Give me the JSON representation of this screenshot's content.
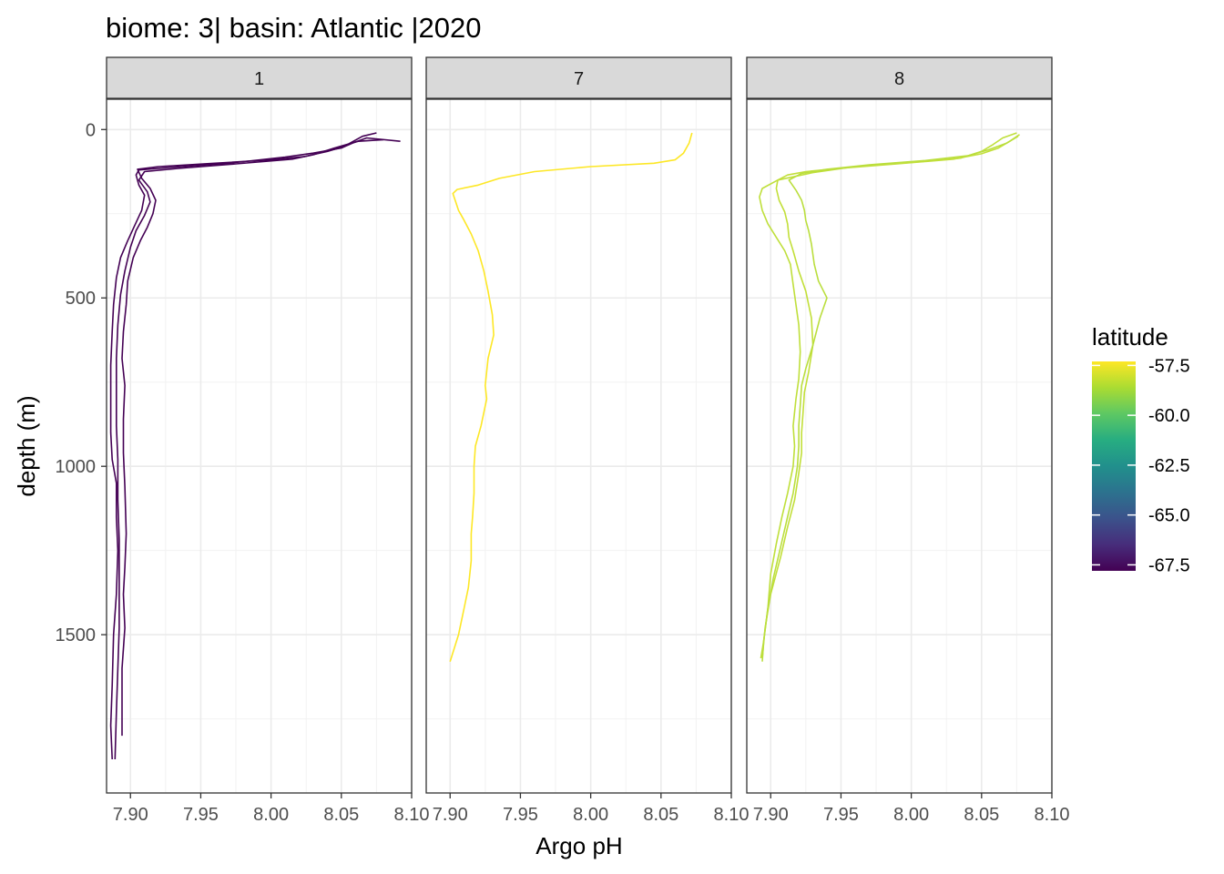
{
  "chart_data": {
    "type": "line",
    "title": "biome: 3| basin: Atlantic |2020",
    "xlabel": "Argo pH",
    "ylabel": "depth (m)",
    "xlim": [
      7.883,
      8.1
    ],
    "ylim": [
      -90,
      1970
    ],
    "y_reversed": true,
    "x_ticks": [
      "7.90",
      "7.95",
      "8.00",
      "8.05",
      "8.10"
    ],
    "y_ticks": [
      "0",
      "500",
      "1000",
      "1500"
    ],
    "grid": true,
    "legend": {
      "title": "latitude",
      "position": "right",
      "ticks": [
        "-57.5",
        "-60.0",
        "-62.5",
        "-65.0",
        "-67.5"
      ],
      "range": [
        -67.8,
        -57.3
      ],
      "colormap": "viridis"
    },
    "panels": [
      {
        "label": "1",
        "series": [
          {
            "latitude": -67.6,
            "color": "#440154",
            "points": [
              [
                8.092,
                35
              ],
              [
                8.068,
                25
              ],
              [
                8.058,
                40
              ],
              [
                8.05,
                55
              ],
              [
                8.03,
                70
              ],
              [
                8.01,
                82
              ],
              [
                7.97,
                100
              ],
              [
                7.93,
                112
              ],
              [
                7.906,
                120
              ],
              [
                7.904,
                135
              ],
              [
                7.906,
                165
              ],
              [
                7.91,
                195
              ],
              [
                7.908,
                240
              ],
              [
                7.903,
                285
              ],
              [
                7.898,
                330
              ],
              [
                7.893,
                380
              ],
              [
                7.89,
                440
              ],
              [
                7.888,
                520
              ],
              [
                7.887,
                600
              ],
              [
                7.886,
                700
              ],
              [
                7.886,
                800
              ],
              [
                7.886,
                900
              ],
              [
                7.887,
                980
              ],
              [
                7.89,
                1050
              ],
              [
                7.89,
                1150
              ],
              [
                7.891,
                1250
              ],
              [
                7.89,
                1380
              ],
              [
                7.888,
                1500
              ],
              [
                7.887,
                1650
              ],
              [
                7.886,
                1770
              ],
              [
                7.887,
                1870
              ]
            ]
          },
          {
            "latitude": -67.4,
            "color": "#440154",
            "points": [
              [
                8.08,
                30
              ],
              [
                8.062,
                35
              ],
              [
                8.045,
                55
              ],
              [
                8.03,
                75
              ],
              [
                8.015,
                88
              ],
              [
                7.975,
                102
              ],
              [
                7.935,
                115
              ],
              [
                7.91,
                125
              ],
              [
                7.906,
                150
              ],
              [
                7.912,
                185
              ],
              [
                7.914,
                215
              ],
              [
                7.91,
                255
              ],
              [
                7.904,
                300
              ],
              [
                7.9,
                350
              ],
              [
                7.896,
                420
              ],
              [
                7.893,
                490
              ],
              [
                7.891,
                580
              ],
              [
                7.89,
                680
              ],
              [
                7.89,
                780
              ],
              [
                7.89,
                880
              ],
              [
                7.891,
                980
              ],
              [
                7.891,
                1100
              ],
              [
                7.892,
                1220
              ],
              [
                7.892,
                1350
              ],
              [
                7.892,
                1480
              ],
              [
                7.891,
                1600
              ],
              [
                7.89,
                1730
              ],
              [
                7.889,
                1870
              ]
            ]
          },
          {
            "latitude": -67.2,
            "color": "#440154",
            "points": [
              [
                8.075,
                10
              ],
              [
                8.065,
                20
              ],
              [
                8.052,
                50
              ],
              [
                8.04,
                65
              ],
              [
                8.024,
                80
              ],
              [
                8.0,
                90
              ],
              [
                7.96,
                100
              ],
              [
                7.92,
                110
              ],
              [
                7.905,
                118
              ],
              [
                7.908,
                145
              ],
              [
                7.914,
                175
              ],
              [
                7.918,
                210
              ],
              [
                7.916,
                250
              ],
              [
                7.912,
                290
              ],
              [
                7.907,
                330
              ],
              [
                7.902,
                380
              ],
              [
                7.898,
                450
              ],
              [
                7.897,
                520
              ],
              [
                7.895,
                600
              ],
              [
                7.894,
                680
              ],
              [
                7.896,
                760
              ],
              [
                7.895,
                860
              ],
              [
                7.895,
                960
              ],
              [
                7.896,
                1060
              ],
              [
                7.897,
                1200
              ],
              [
                7.896,
                1300
              ],
              [
                7.895,
                1380
              ],
              [
                7.896,
                1480
              ],
              [
                7.894,
                1600
              ],
              [
                7.894,
                1700
              ],
              [
                7.894,
                1800
              ]
            ]
          }
        ]
      },
      {
        "label": "7",
        "series": [
          {
            "latitude": -57.3,
            "color": "#FDE725",
            "points": [
              [
                8.072,
                10
              ],
              [
                8.07,
                40
              ],
              [
                8.066,
                70
              ],
              [
                8.06,
                90
              ],
              [
                8.045,
                100
              ],
              [
                8.0,
                110
              ],
              [
                7.96,
                125
              ],
              [
                7.935,
                145
              ],
              [
                7.92,
                165
              ],
              [
                7.905,
                178
              ],
              [
                7.902,
                190
              ],
              [
                7.904,
                215
              ],
              [
                7.906,
                240
              ],
              [
                7.91,
                270
              ],
              [
                7.915,
                310
              ],
              [
                7.92,
                360
              ],
              [
                7.924,
                420
              ],
              [
                7.927,
                480
              ],
              [
                7.93,
                550
              ],
              [
                7.931,
                610
              ],
              [
                7.927,
                680
              ],
              [
                7.925,
                760
              ],
              [
                7.926,
                800
              ],
              [
                7.922,
                880
              ],
              [
                7.918,
                940
              ],
              [
                7.917,
                1000
              ],
              [
                7.917,
                1080
              ],
              [
                7.916,
                1150
              ],
              [
                7.915,
                1200
              ],
              [
                7.915,
                1280
              ],
              [
                7.913,
                1360
              ],
              [
                7.91,
                1420
              ],
              [
                7.906,
                1500
              ],
              [
                7.9,
                1580
              ]
            ]
          }
        ]
      },
      {
        "label": "8",
        "series": [
          {
            "latitude": -58.2,
            "color": "#BFDF3B",
            "points": [
              [
                8.075,
                10
              ],
              [
                8.065,
                25
              ],
              [
                8.058,
                45
              ],
              [
                8.05,
                65
              ],
              [
                8.035,
                85
              ],
              [
                8.0,
                98
              ],
              [
                7.96,
                110
              ],
              [
                7.93,
                128
              ],
              [
                7.905,
                150
              ],
              [
                7.894,
                175
              ],
              [
                7.892,
                200
              ],
              [
                7.894,
                240
              ],
              [
                7.898,
                280
              ],
              [
                7.904,
                320
              ],
              [
                7.91,
                360
              ],
              [
                7.914,
                400
              ],
              [
                7.916,
                460
              ],
              [
                7.918,
                520
              ],
              [
                7.92,
                580
              ],
              [
                7.921,
                660
              ],
              [
                7.92,
                740
              ],
              [
                7.918,
                800
              ],
              [
                7.916,
                880
              ],
              [
                7.917,
                940
              ],
              [
                7.916,
                1000
              ],
              [
                7.912,
                1080
              ],
              [
                7.908,
                1150
              ],
              [
                7.904,
                1230
              ],
              [
                7.9,
                1320
              ],
              [
                7.898,
                1420
              ],
              [
                7.895,
                1520
              ],
              [
                7.893,
                1570
              ]
            ]
          },
          {
            "latitude": -58.0,
            "color": "#C2DF39",
            "points": [
              [
                8.077,
                15
              ],
              [
                8.07,
                35
              ],
              [
                8.062,
                55
              ],
              [
                8.05,
                72
              ],
              [
                8.03,
                88
              ],
              [
                7.99,
                102
              ],
              [
                7.95,
                115
              ],
              [
                7.925,
                125
              ],
              [
                7.912,
                135
              ],
              [
                7.905,
                150
              ],
              [
                7.904,
                175
              ],
              [
                7.906,
                210
              ],
              [
                7.91,
                245
              ],
              [
                7.912,
                280
              ],
              [
                7.913,
                320
              ],
              [
                7.916,
                360
              ],
              [
                7.92,
                420
              ],
              [
                7.925,
                480
              ],
              [
                7.929,
                560
              ],
              [
                7.93,
                640
              ],
              [
                7.927,
                720
              ],
              [
                7.924,
                780
              ],
              [
                7.923,
                840
              ],
              [
                7.922,
                900
              ],
              [
                7.922,
                960
              ],
              [
                7.92,
                1020
              ],
              [
                7.917,
                1100
              ],
              [
                7.912,
                1180
              ],
              [
                7.907,
                1270
              ],
              [
                7.9,
                1380
              ],
              [
                7.896,
                1480
              ],
              [
                7.894,
                1570
              ]
            ]
          },
          {
            "latitude": -58.4,
            "color": "#BADE3D",
            "points": [
              [
                8.076,
                20
              ],
              [
                8.068,
                40
              ],
              [
                8.055,
                60
              ],
              [
                8.04,
                78
              ],
              [
                8.01,
                92
              ],
              [
                7.97,
                105
              ],
              [
                7.94,
                118
              ],
              [
                7.922,
                130
              ],
              [
                7.913,
                150
              ],
              [
                7.918,
                180
              ],
              [
                7.922,
                210
              ],
              [
                7.924,
                240
              ],
              [
                7.925,
                270
              ],
              [
                7.927,
                300
              ],
              [
                7.929,
                340
              ],
              [
                7.931,
                400
              ],
              [
                7.934,
                450
              ],
              [
                7.94,
                500
              ],
              [
                7.935,
                560
              ],
              [
                7.93,
                640
              ],
              [
                7.925,
                710
              ],
              [
                7.922,
                760
              ],
              [
                7.921,
                820
              ],
              [
                7.92,
                880
              ],
              [
                7.92,
                940
              ],
              [
                7.919,
                1000
              ],
              [
                7.916,
                1080
              ],
              [
                7.912,
                1150
              ],
              [
                7.907,
                1240
              ],
              [
                7.902,
                1330
              ],
              [
                7.898,
                1420
              ],
              [
                7.895,
                1520
              ],
              [
                7.894,
                1580
              ]
            ]
          }
        ]
      }
    ]
  }
}
